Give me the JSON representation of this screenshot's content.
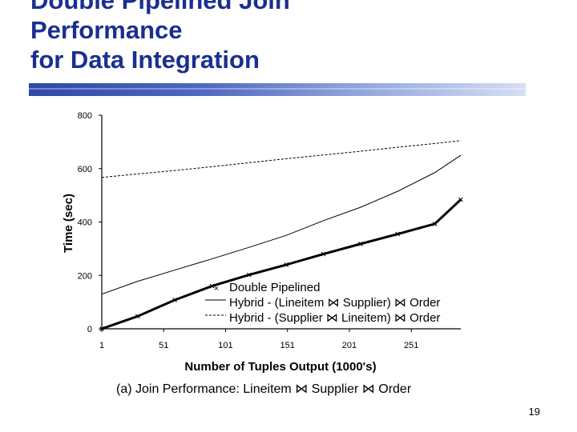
{
  "slide": {
    "title_lines": [
      "Double Pipelined Join",
      "Performance",
      "for Data Integration"
    ],
    "page_number": "19"
  },
  "chart_data": {
    "type": "line",
    "title": "",
    "xlabel": "Number of Tuples Output (1000's)",
    "ylabel": "Time (sec)",
    "xlim": [
      1,
      291
    ],
    "ylim": [
      0,
      800
    ],
    "x_ticks": [
      "1",
      "51",
      "101",
      "151",
      "201",
      "251"
    ],
    "y_ticks": [
      "0",
      "200",
      "400",
      "600",
      "800"
    ],
    "grid": false,
    "legend_position": "bottom-right",
    "series": [
      {
        "name": "Double Pipelined",
        "marker": "x",
        "color": "#000000",
        "x": [
          1,
          30,
          60,
          90,
          120,
          150,
          180,
          210,
          240,
          270,
          291
        ],
        "y": [
          0,
          47,
          108,
          160,
          202,
          240,
          280,
          318,
          355,
          393,
          484
        ]
      },
      {
        "name": "Hybrid - (Lineitem ⋈ Supplier) ⋈ Order",
        "line_style": "solid",
        "color": "#000000",
        "x": [
          1,
          30,
          60,
          90,
          120,
          150,
          180,
          210,
          240,
          270,
          291
        ],
        "y": [
          130,
          178,
          220,
          262,
          305,
          350,
          405,
          455,
          515,
          585,
          650
        ]
      },
      {
        "name": "Hybrid - (Supplier ⋈ Lineitem) ⋈ Order",
        "line_style": "dashed",
        "color": "#000000",
        "x": [
          1,
          30,
          60,
          90,
          120,
          150,
          180,
          210,
          240,
          270,
          291
        ],
        "y": [
          567,
          580,
          593,
          607,
          622,
          637,
          651,
          665,
          680,
          694,
          705
        ]
      }
    ],
    "caption": "(a) Join Performance:  Lineitem ⋈ Supplier ⋈ Order"
  }
}
